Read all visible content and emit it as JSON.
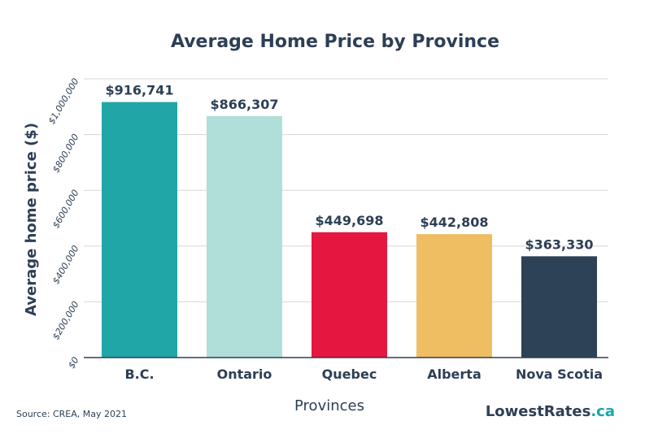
{
  "chart_data": {
    "type": "bar",
    "title": "Average Home Price by Province",
    "xlabel": "Provinces",
    "ylabel": "Average home price ($)",
    "categories": [
      "B.C.",
      "Ontario",
      "Quebec",
      "Alberta",
      "Nova Scotia"
    ],
    "values": [
      916741,
      866307,
      449698,
      442808,
      363330
    ],
    "data_labels": [
      "$916,741",
      "$866,307",
      "$449,698",
      "$442,808",
      "$363,330"
    ],
    "bar_colors": [
      "#21a6a8",
      "#b0ded8",
      "#e5163f",
      "#efbe62",
      "#2d4157"
    ],
    "ylim": [
      0,
      1000000
    ],
    "yticks": [
      0,
      200000,
      400000,
      600000,
      800000,
      1000000
    ],
    "ytick_labels": [
      "$0",
      "$200,000",
      "$400,000",
      "$600,000",
      "$800,000",
      "$1,000,000"
    ],
    "grid": true,
    "legend": false
  },
  "footer": {
    "source": "Source: CREA, May 2021",
    "brand_name": "LowestRates",
    "brand_tld": ".ca"
  }
}
